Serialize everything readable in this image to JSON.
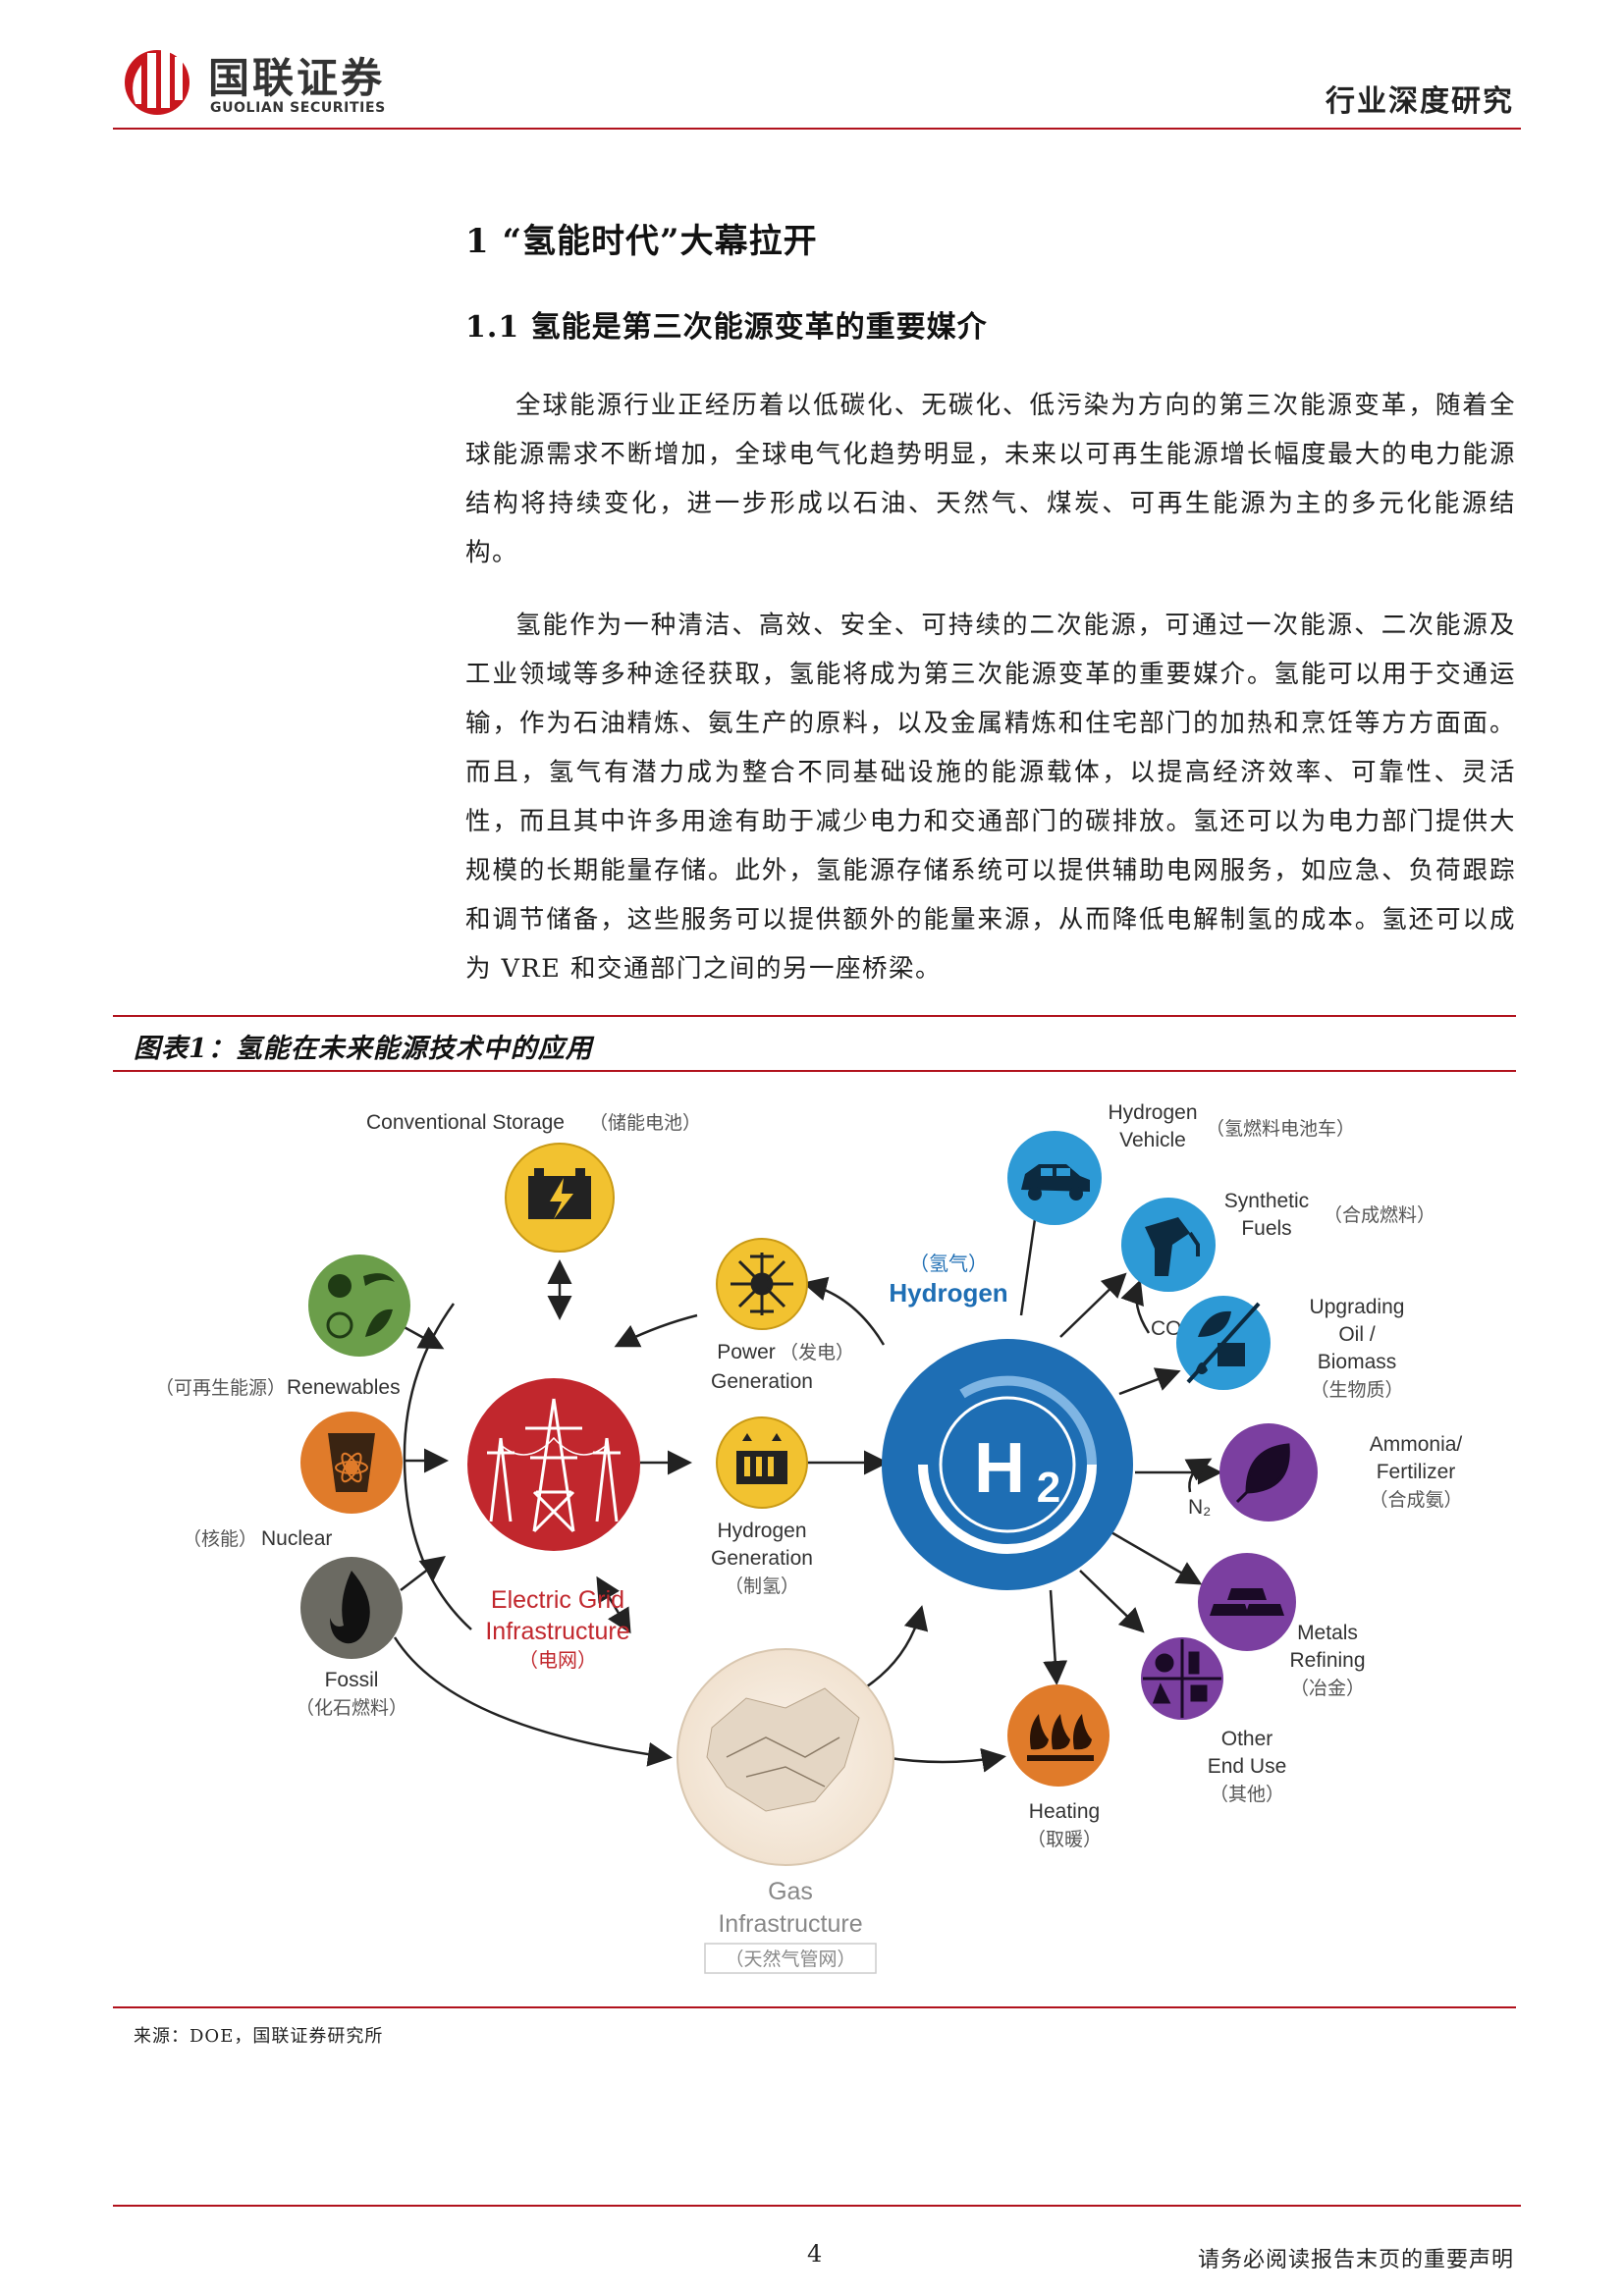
{
  "header": {
    "logo_cn": "国联证券",
    "logo_en": "GUOLIAN SECURITIES",
    "report_type": "行业深度研究"
  },
  "section": {
    "h1": "1 “氢能时代”大幕拉开",
    "h2": "1.1 氢能是第三次能源变革的重要媒介"
  },
  "paragraphs": [
    "全球能源行业正经历着以低碳化、无碳化、低污染为方向的第三次能源变革，随着全球能源需求不断增加，全球电气化趋势明显，未来以可再生能源增长幅度最大的电力能源结构将持续变化，进一步形成以石油、天然气、煤炭、可再生能源为主的多元化能源结构。",
    "氢能作为一种清洁、高效、安全、可持续的二次能源，可通过一次能源、二次能源及工业领域等多种途径获取，氢能将成为第三次能源变革的重要媒介。氢能可以用于交通运输，作为石油精炼、氨生产的原料，以及金属精炼和住宅部门的加热和烹饪等方方面面。而且，氢气有潜力成为整合不同基础设施的能源载体，以提高经济效率、可靠性、灵活性，而且其中许多用途有助于减少电力和交通部门的碳排放。氢还可以为电力部门提供大规模的长期能量存储。此外，氢能源存储系统可以提供辅助电网服务，如应急、负荷跟踪和调节储备，这些服务可以提供额外的能量来源，从而降低电解制氢的成本。氢还可以成为 VRE 和交通部门之间的另一座桥梁。"
  ],
  "figure": {
    "title": "图表1：氢能在未来能源技术中的应用",
    "source": "来源：DOE，国联证券研究所",
    "nodes": {
      "conventional_storage": {
        "en": "Conventional Storage",
        "cn": "（储能电池）"
      },
      "renewables": {
        "en": "Renewables",
        "cn": "（可再生能源）"
      },
      "nuclear": {
        "en": "Nuclear",
        "cn": "（核能）"
      },
      "fossil": {
        "en": "Fossil",
        "cn": "（化石燃料）"
      },
      "electric_grid": {
        "en1": "Electric Grid",
        "en2": "Infrastructure",
        "cn": "（电网）"
      },
      "power_generation": {
        "en1": "Power",
        "en2": "Generation",
        "cn": "（发电）"
      },
      "hydrogen_generation": {
        "en1": "Hydrogen",
        "en2": "Generation",
        "cn": "（制氢）"
      },
      "hydrogen": {
        "en": "Hydrogen",
        "cn": "（氢气）",
        "symbol": "H2"
      },
      "gas_infrastructure": {
        "en1": "Gas",
        "en2": "Infrastructure",
        "cn": "（天然气管网）"
      },
      "hydrogen_vehicle": {
        "en1": "Hydrogen",
        "en2": "Vehicle",
        "cn": "（氢燃料电池车）"
      },
      "synthetic_fuels": {
        "en1": "Synthetic",
        "en2": "Fuels",
        "cn": "（合成燃料）"
      },
      "upgrading": {
        "en1": "Upgrading",
        "en2": "Oil /",
        "en3": "Biomass",
        "cn": "（生物质）"
      },
      "ammonia": {
        "en1": "Ammonia/",
        "en2": "Fertilizer",
        "cn": "（合成氨）"
      },
      "metals": {
        "en1": "Metals",
        "en2": "Refining",
        "cn": "（冶金）"
      },
      "other": {
        "en1": "Other",
        "en2": "End Use",
        "cn": "（其他）"
      },
      "heating": {
        "en": "Heating",
        "cn": "（取暖）"
      },
      "co2": "CO₂",
      "n2": "N₂"
    }
  },
  "footer": {
    "page": "4",
    "disclaimer": "请务必阅读报告末页的重要声明"
  },
  "colors": {
    "brand_red": "#b1121d",
    "grid_red": "#c1272d",
    "hydrogen_blue": "#1e6eb4",
    "storage_yellow": "#f2c230",
    "nuclear_orange": "#e07b2a",
    "renew_green": "#6b9e4a",
    "fossil_gray": "#6b6a62",
    "enduse_purple": "#7b3fa0",
    "vehicle_blue": "#2d9ad6"
  }
}
